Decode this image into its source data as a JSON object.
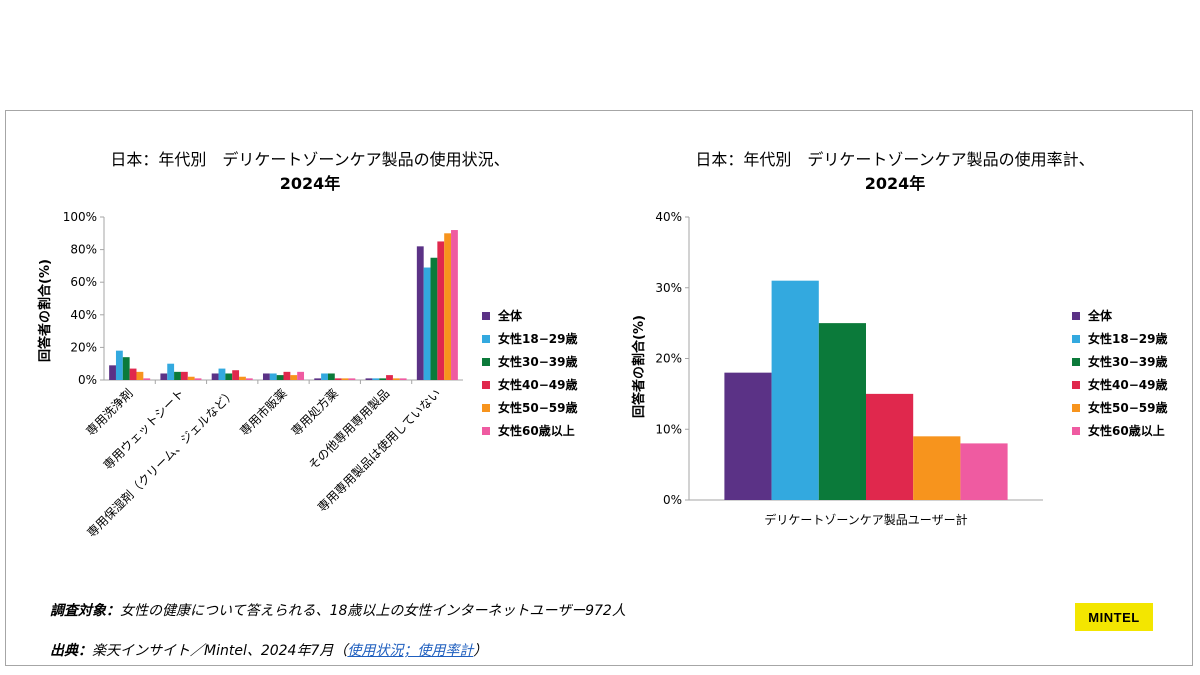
{
  "charts": [
    {
      "type": "bar",
      "title_line1": "日本：年代別　デリケートゾーンケア製品の使用状況、",
      "title_line2": "2024年",
      "ylabel": "回答者の割合(%)",
      "ylim": [
        0,
        100
      ],
      "yticks": [
        "0%",
        "20%",
        "40%",
        "60%",
        "80%",
        "100%"
      ],
      "categories": [
        "専用洗浄剤",
        "専用ウェットシート",
        "専用保湿剤（クリーム、ジェルなど）",
        "専用市販薬",
        "専用処方薬",
        "その他専用専用製品",
        "専用専用製品は使用していない"
      ],
      "series": [
        {
          "name": "全体",
          "color": "#5b3286",
          "values": [
            9,
            4,
            4,
            4,
            1,
            1,
            82
          ]
        },
        {
          "name": "女性18−29歳",
          "color": "#33a9df",
          "values": [
            18,
            10,
            7,
            4,
            4,
            1,
            69
          ]
        },
        {
          "name": "女性30−39歳",
          "color": "#0b7a3a",
          "values": [
            14,
            5,
            4,
            3,
            4,
            1,
            75
          ]
        },
        {
          "name": "女性40−49歳",
          "color": "#e0284d",
          "values": [
            7,
            5,
            6,
            5,
            1,
            3,
            85
          ]
        },
        {
          "name": "女性50−59歳",
          "color": "#f7941d",
          "values": [
            5,
            2,
            2,
            3,
            1,
            1,
            90
          ]
        },
        {
          "name": "女性60歳以上",
          "color": "#ef5ba1",
          "values": [
            1,
            1,
            1,
            5,
            1,
            1,
            92
          ]
        }
      ]
    },
    {
      "type": "bar",
      "title_line1": "日本：年代別　デリケートゾーンケア製品の使用率計、",
      "title_line2": "2024年",
      "ylabel": "回答者の割合(%)",
      "ylim": [
        0,
        40
      ],
      "yticks": [
        "0%",
        "10%",
        "20%",
        "30%",
        "40%"
      ],
      "categories": [
        "デリケートゾーンケア製品ユーザー計"
      ],
      "series": [
        {
          "name": "全体",
          "color": "#5b3286",
          "values": [
            18
          ]
        },
        {
          "name": "女性18−29歳",
          "color": "#33a9df",
          "values": [
            31
          ]
        },
        {
          "name": "女性30−39歳",
          "color": "#0b7a3a",
          "values": [
            25
          ]
        },
        {
          "name": "女性40−49歳",
          "color": "#e0284d",
          "values": [
            15
          ]
        },
        {
          "name": "女性50−59歳",
          "color": "#f7941d",
          "values": [
            9
          ]
        },
        {
          "name": "女性60歳以上",
          "color": "#ef5ba1",
          "values": [
            8
          ]
        }
      ]
    }
  ],
  "footer": {
    "survey_label": "調査対象：",
    "survey_text": "女性の健康について答えられる、18歳以上の女性インターネットユーザー972人",
    "source_label": "出典：",
    "source_text": "楽天インサイト／Mintel、2024年7月（",
    "source_link": "使用状況；使用率計",
    "source_close": "）"
  },
  "logo": "MINTEL"
}
